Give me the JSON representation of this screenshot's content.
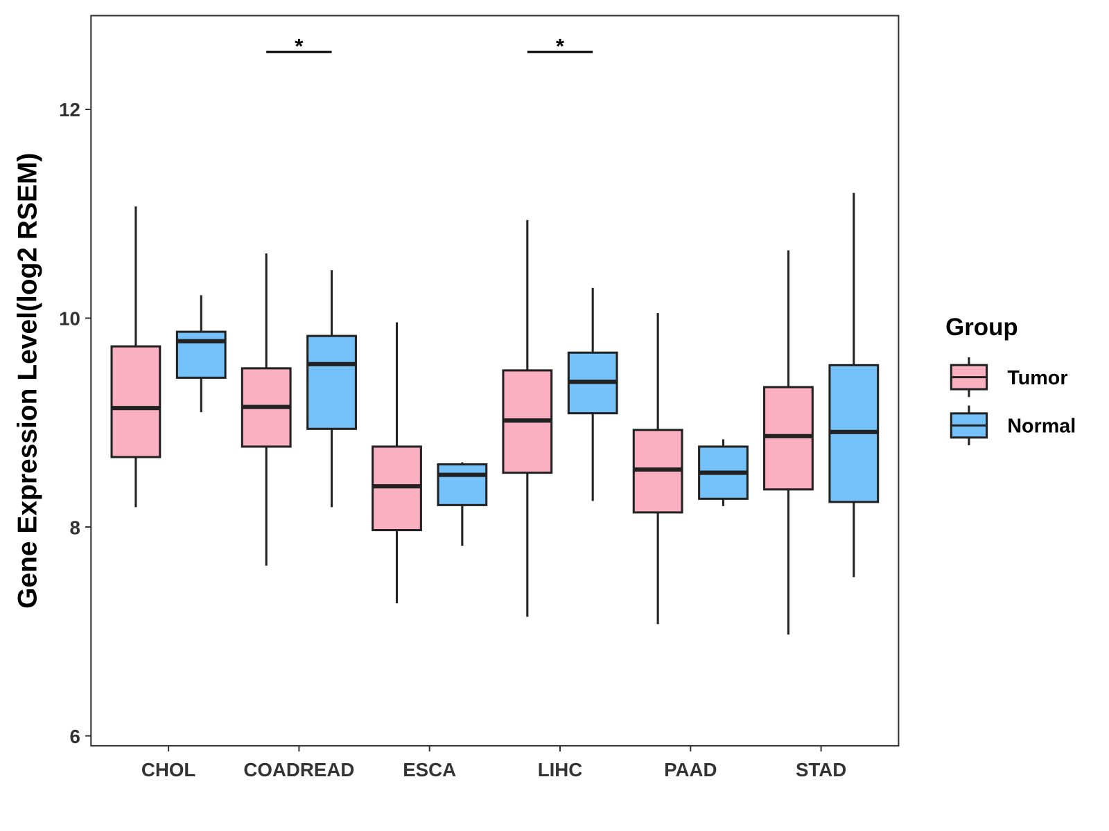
{
  "chart_data": {
    "type": "boxplot",
    "title": "",
    "xlabel": "",
    "ylabel": "Gene Expression Level(log2 RSEM)",
    "ylim": [
      5.9,
      12.9
    ],
    "yticks": [
      "6",
      "8",
      "10",
      "12"
    ],
    "ytick_values": [
      6,
      8,
      10,
      12
    ],
    "grid": false,
    "categories": [
      "CHOL",
      "COADREAD",
      "ESCA",
      "LIHC",
      "PAAD",
      "STAD"
    ],
    "legend": {
      "title": "Group",
      "placement": "right",
      "entries": [
        "Tumor",
        "Normal"
      ]
    },
    "series": [
      {
        "name": "Tumor",
        "color": "#FBB0C1",
        "boxes": [
          {
            "min": 8.19,
            "q1": 8.67,
            "median": 9.14,
            "q3": 9.73,
            "max": 11.07
          },
          {
            "min": 7.63,
            "q1": 8.77,
            "median": 9.15,
            "q3": 9.52,
            "max": 10.62
          },
          {
            "min": 7.27,
            "q1": 7.97,
            "median": 8.39,
            "q3": 8.77,
            "max": 9.96
          },
          {
            "min": 7.14,
            "q1": 8.52,
            "median": 9.02,
            "q3": 9.5,
            "max": 10.94
          },
          {
            "min": 7.07,
            "q1": 8.14,
            "median": 8.55,
            "q3": 8.93,
            "max": 10.05
          },
          {
            "min": 6.97,
            "q1": 8.36,
            "median": 8.87,
            "q3": 9.34,
            "max": 10.65
          }
        ]
      },
      {
        "name": "Normal",
        "color": "#75C1F9",
        "boxes": [
          {
            "min": 9.1,
            "q1": 9.43,
            "median": 9.78,
            "q3": 9.87,
            "max": 10.22
          },
          {
            "min": 8.19,
            "q1": 8.94,
            "median": 9.56,
            "q3": 9.83,
            "max": 10.46
          },
          {
            "min": 7.82,
            "q1": 8.21,
            "median": 8.5,
            "q3": 8.6,
            "max": 8.62
          },
          {
            "min": 8.25,
            "q1": 9.09,
            "median": 9.39,
            "q3": 9.67,
            "max": 10.29
          },
          {
            "min": 8.2,
            "q1": 8.27,
            "median": 8.52,
            "q3": 8.77,
            "max": 8.84
          },
          {
            "min": 7.52,
            "q1": 8.24,
            "median": 8.91,
            "q3": 9.55,
            "max": 11.2
          }
        ]
      }
    ],
    "annotations": [
      {
        "category": "COADREAD",
        "label": "*",
        "y": 12.55
      },
      {
        "category": "LIHC",
        "label": "*",
        "y": 12.55
      }
    ]
  }
}
